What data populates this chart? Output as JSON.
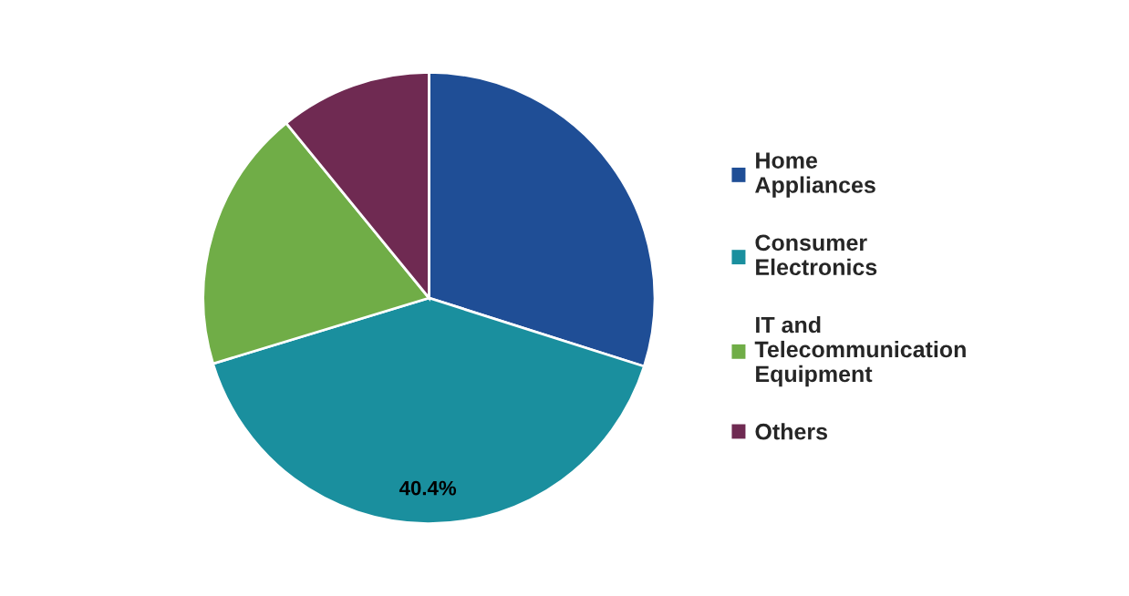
{
  "chart_data": {
    "type": "pie",
    "categories": [
      "Home Appliances",
      "Consumer Electronics",
      "IT and Telecommunication Equipment",
      "Others"
    ],
    "values": [
      29.9,
      40.4,
      18.8,
      10.9
    ],
    "colors": [
      "#1f4e96",
      "#1a8f9e",
      "#70ad47",
      "#6f2a52"
    ],
    "value_labels": [
      null,
      "40.4%",
      null,
      null
    ],
    "legend": "right"
  }
}
